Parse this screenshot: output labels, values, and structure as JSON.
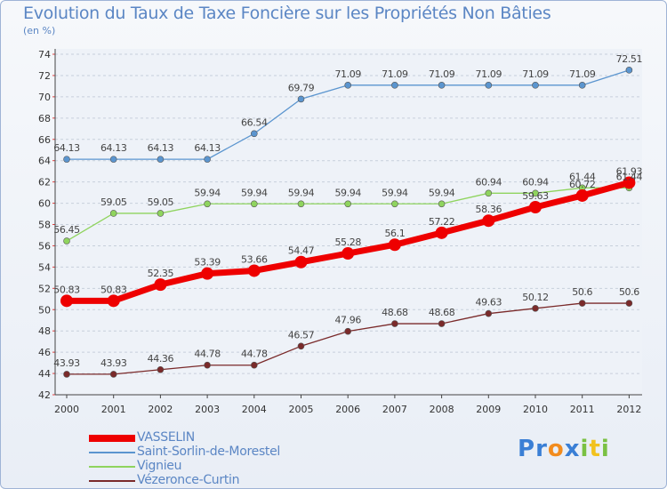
{
  "title": "Evolution du Taux de Taxe Foncière sur les Propriétés Non Bâties",
  "unit_label": "(en %)",
  "logo": {
    "letters": [
      "P",
      "r",
      "o",
      "x",
      "i",
      "t",
      "i"
    ],
    "colors": [
      "#3a7fd5",
      "#3a7fd5",
      "#f28c1e",
      "#3a7fd5",
      "#7ac143",
      "#f2c21e",
      "#7ac143"
    ]
  },
  "chart_data": {
    "type": "line",
    "title": "Evolution du Taux de Taxe Foncière sur les Propriétés Non Bâties",
    "ylabel": "(en %)",
    "xlabel": "",
    "x": [
      "2000",
      "2001",
      "2002",
      "2003",
      "2004",
      "2005",
      "2006",
      "2007",
      "2008",
      "2009",
      "2010",
      "2011",
      "2012"
    ],
    "ylim": [
      42,
      74
    ],
    "yticks": [
      "42",
      "44",
      "46",
      "48",
      "50",
      "52",
      "54",
      "56",
      "58",
      "60",
      "62",
      "64",
      "66",
      "68",
      "70",
      "72",
      "74"
    ],
    "grid": "dashed-horizontal",
    "legend_position": "bottom-left",
    "series": [
      {
        "name": "VASSELIN",
        "color": "#ee0000",
        "values": [
          50.83,
          50.83,
          52.35,
          53.39,
          53.66,
          54.47,
          55.28,
          56.1,
          57.22,
          58.36,
          59.63,
          60.72,
          61.93
        ],
        "labels": [
          "50.83",
          "50.83",
          "52.35",
          "53.39",
          "53.66",
          "54.47",
          "55.28",
          "56.1",
          "57.22",
          "58.36",
          "59.63",
          "60.72",
          "61.93"
        ]
      },
      {
        "name": "Saint-Sorlin-de-Morestel",
        "color": "#5b95cf",
        "values": [
          64.13,
          64.13,
          64.13,
          64.13,
          66.54,
          69.79,
          71.09,
          71.09,
          71.09,
          71.09,
          71.09,
          71.09,
          72.51
        ],
        "labels": [
          "64.13",
          "64.13",
          "64.13",
          "64.13",
          "66.54",
          "69.79",
          "71.09",
          "71.09",
          "71.09",
          "71.09",
          "71.09",
          "71.09",
          "72.51"
        ]
      },
      {
        "name": "Vignieu",
        "color": "#8fd45e",
        "values": [
          56.45,
          59.05,
          59.05,
          59.94,
          59.94,
          59.94,
          59.94,
          59.94,
          59.94,
          60.94,
          60.94,
          61.44,
          61.44
        ],
        "labels": [
          "56.45",
          "59.05",
          "59.05",
          "59.94",
          "59.94",
          "59.94",
          "59.94",
          "59.94",
          "59.94",
          "60.94",
          "60.94",
          "61.44",
          "61.44"
        ]
      },
      {
        "name": "Vézeronce-Curtin",
        "color": "#7a2a2a",
        "values": [
          43.93,
          43.93,
          44.36,
          44.78,
          44.78,
          46.57,
          47.96,
          48.68,
          48.68,
          49.63,
          50.12,
          50.6,
          50.6
        ],
        "labels": [
          "43.93",
          "43.93",
          "44.36",
          "44.78",
          "44.78",
          "46.57",
          "47.96",
          "48.68",
          "48.68",
          "49.63",
          "50.12",
          "50.6",
          "50.6"
        ]
      }
    ]
  }
}
